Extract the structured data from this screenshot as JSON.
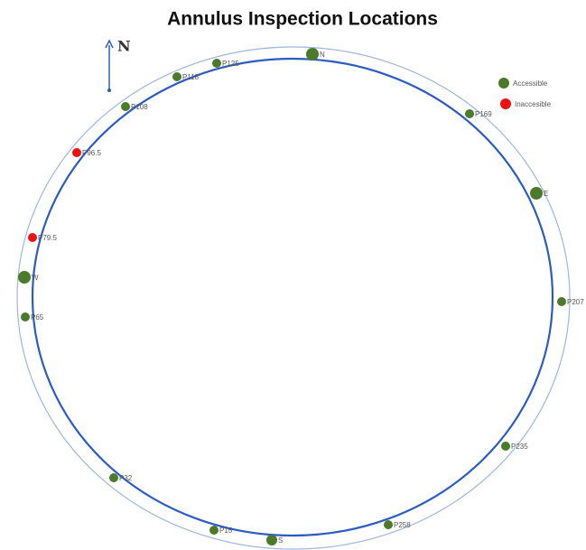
{
  "title": "Annulus Inspection Locations",
  "compass": {
    "label": "N"
  },
  "legend": [
    {
      "label": "Accessible",
      "color": "#4b7a2a"
    },
    {
      "label": "Inaccesible",
      "color": "#ee1111"
    }
  ],
  "points": [
    {
      "label": "N",
      "color": "#4b7a2a"
    },
    {
      "label": "P125",
      "color": "#4b7a2a"
    },
    {
      "label": "P118",
      "color": "#4b7a2a"
    },
    {
      "label": "P108",
      "color": "#4b7a2a"
    },
    {
      "label": "P96.5",
      "color": "#ee1111"
    },
    {
      "label": "P79.5",
      "color": "#ee1111"
    },
    {
      "label": "W",
      "color": "#4b7a2a"
    },
    {
      "label": "P65",
      "color": "#4b7a2a"
    },
    {
      "label": "P32",
      "color": "#4b7a2a"
    },
    {
      "label": "P15",
      "color": "#4b7a2a"
    },
    {
      "label": "S",
      "color": "#4b7a2a"
    },
    {
      "label": "P258",
      "color": "#4b7a2a"
    },
    {
      "label": "P235",
      "color": "#4b7a2a"
    },
    {
      "label": "P207",
      "color": "#4b7a2a"
    },
    {
      "label": "E",
      "color": "#4b7a2a"
    },
    {
      "label": "P169",
      "color": "#4b7a2a"
    }
  ]
}
